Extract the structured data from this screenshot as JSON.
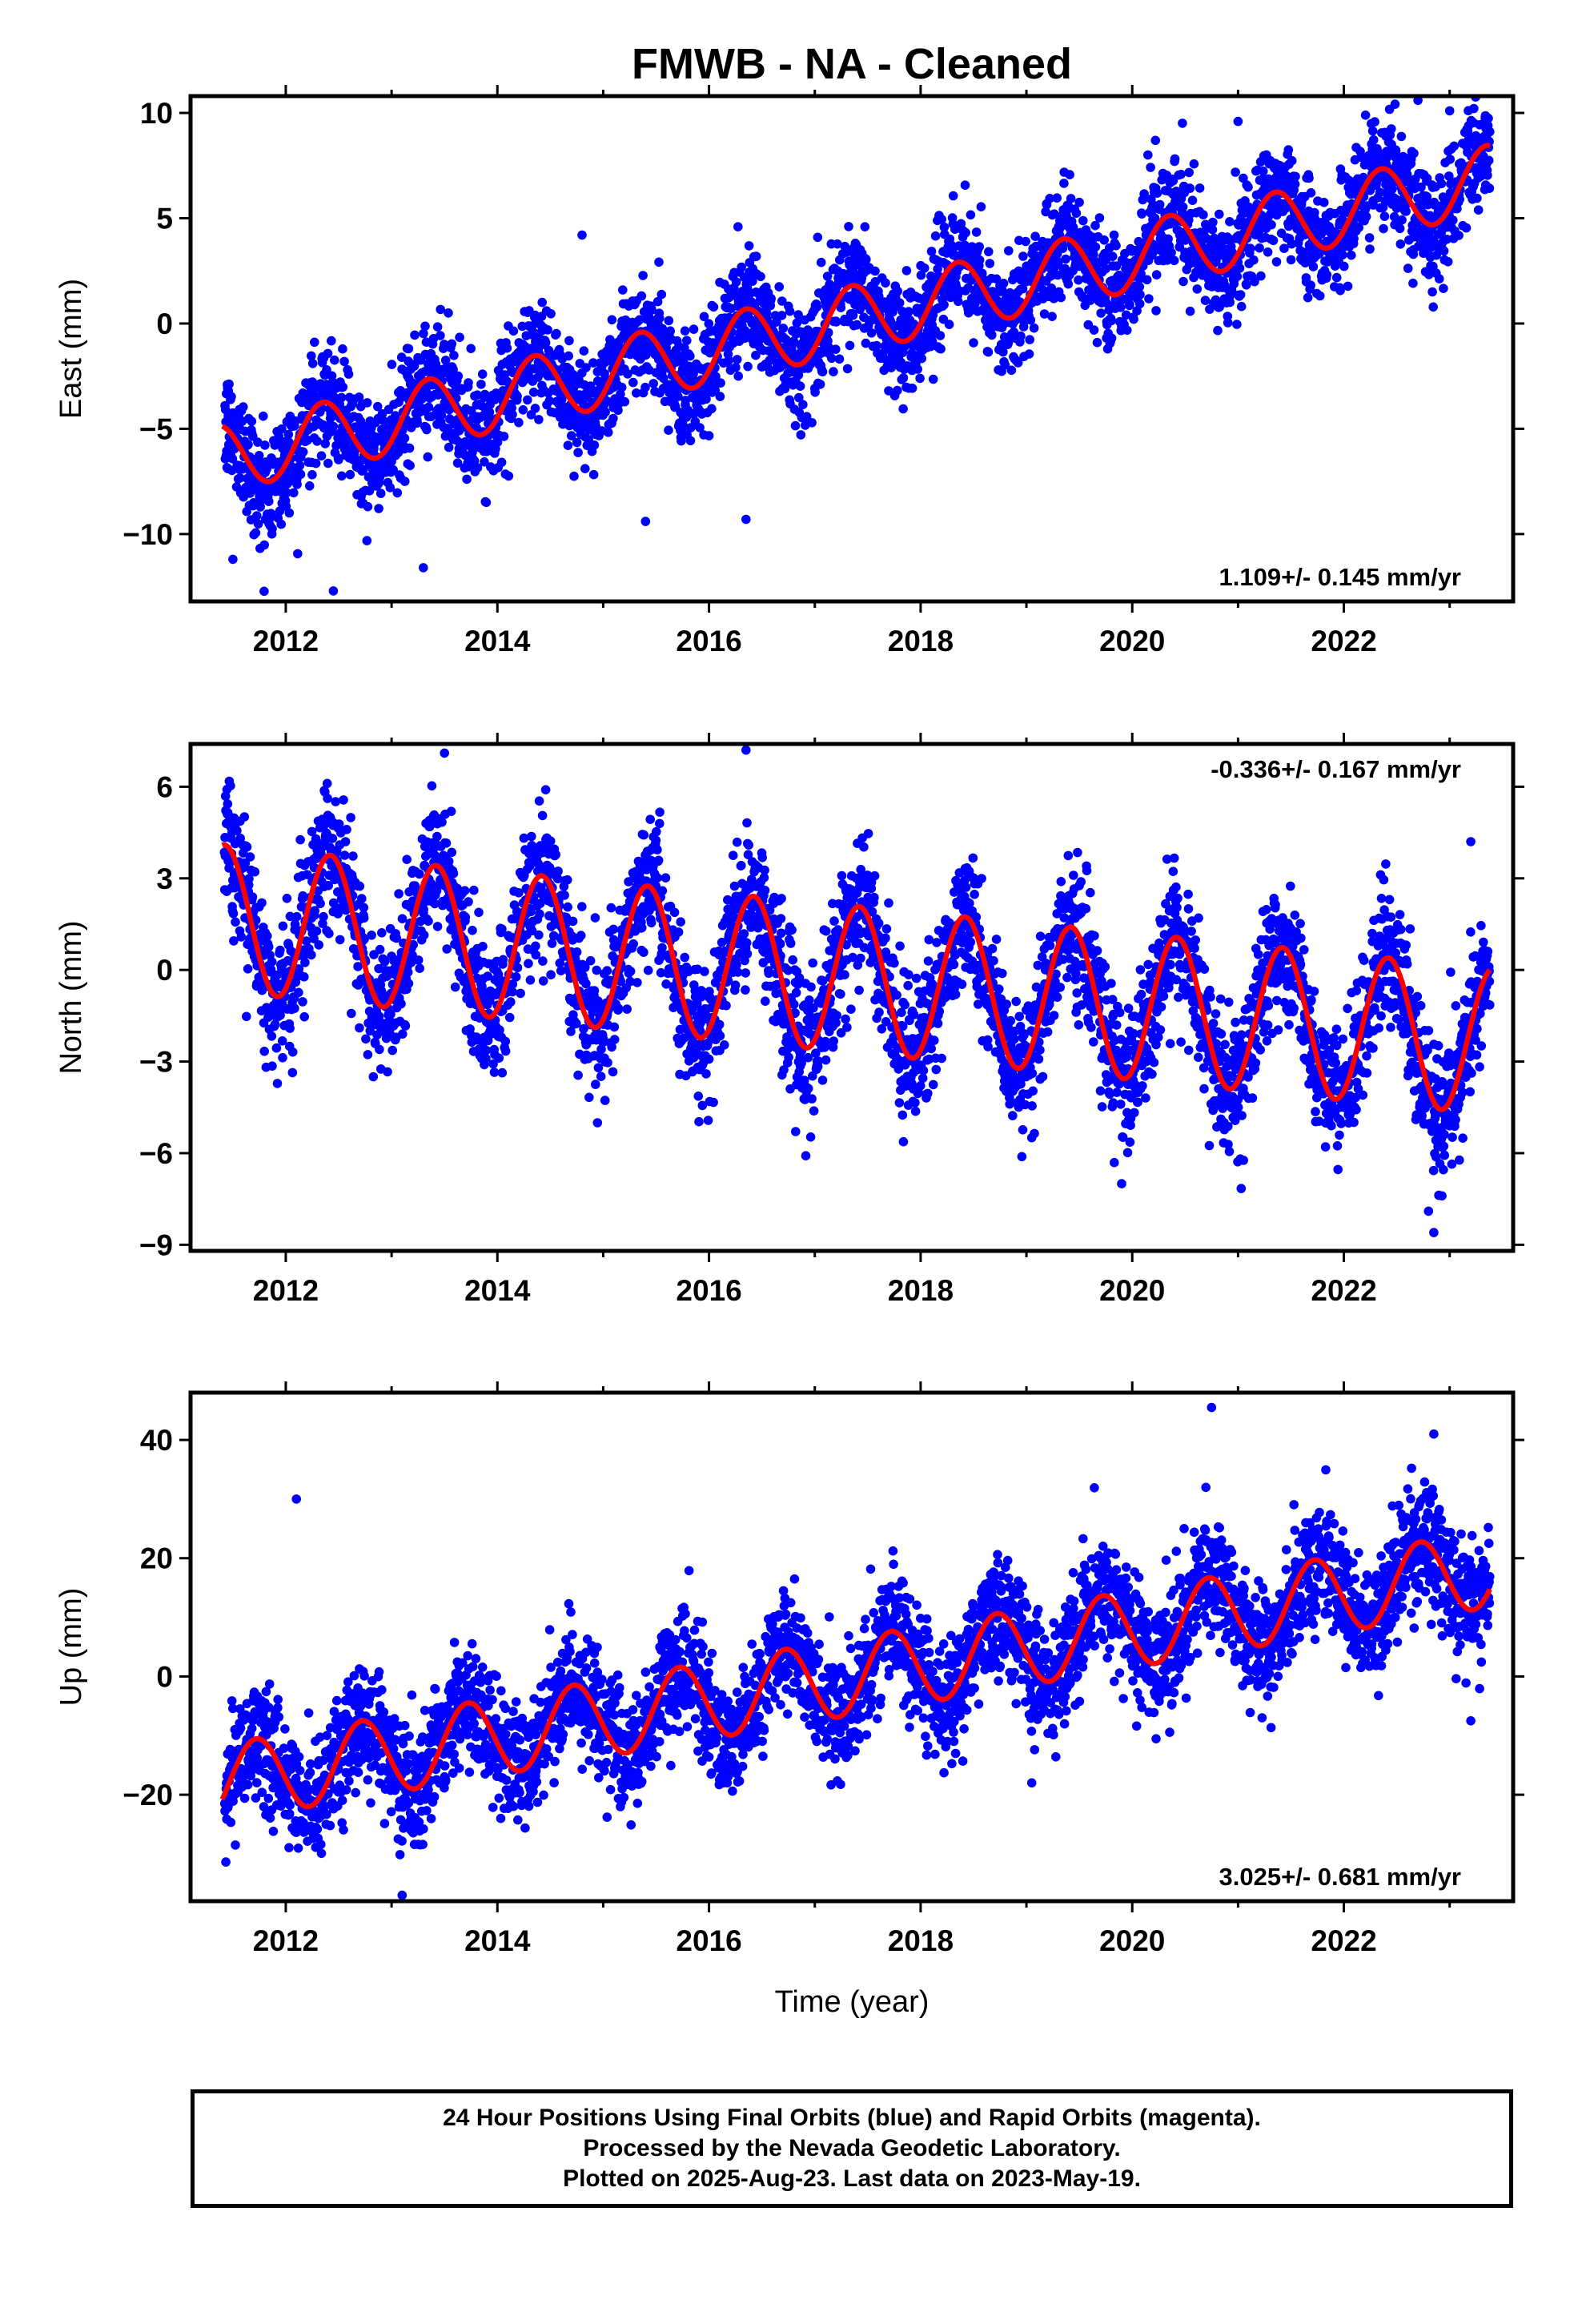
{
  "chart_data": {
    "title": "FMWB  - NA - Cleaned",
    "type": "scatter",
    "xlabel": "Time (year)",
    "xlim": [
      2011.1,
      2023.6
    ],
    "xticks": [
      2012,
      2014,
      2016,
      2018,
      2020,
      2022
    ],
    "grid": false,
    "series_colors": {
      "data": "#0000ff",
      "model": "#ff0000"
    },
    "panels": [
      {
        "id": "east",
        "ylabel": "East (mm)",
        "ylim": [
          -13.2,
          10.8
        ],
        "yticks": [
          10,
          5,
          0,
          -5,
          -10
        ],
        "ytick_labels": [
          "10",
          "5",
          "0",
          "−5",
          "−10"
        ],
        "rate_text": "1.109+/- 0.145 mm/yr",
        "rate_position": "bottom-right",
        "model": {
          "t0": 2011.4,
          "offset": -6.4,
          "trend_mm_per_yr": 1.109,
          "annual_amp": 1.6,
          "peak_year_fraction": 0.35,
          "t_end": 2023.38
        },
        "scatter_sd": 1.3,
        "outliers": [
          [
            2012.45,
            -12.7
          ],
          [
            2013.3,
            -11.6
          ],
          [
            2015.4,
            -9.4
          ],
          [
            2016.35,
            -9.3
          ],
          [
            2014.8,
            4.2
          ],
          [
            2022.7,
            10.6
          ],
          [
            2023.0,
            10.1
          ],
          [
            2021.0,
            9.6
          ],
          [
            2011.5,
            -11.2
          ]
        ]
      },
      {
        "id": "north",
        "ylabel": "North (mm)",
        "ylim": [
          -9.2,
          7.4
        ],
        "yticks": [
          6,
          3,
          0,
          -3,
          -6,
          -9
        ],
        "ytick_labels": [
          "6",
          "3",
          "0",
          "−3",
          "−6",
          "−9"
        ],
        "rate_text": "-0.336+/- 0.167 mm/yr",
        "rate_position": "top-right",
        "model": {
          "t0": 2011.4,
          "offset": 1.7,
          "trend_mm_per_yr": -0.336,
          "annual_amp": 2.4,
          "peak_year_fraction": 0.42,
          "t_end": 2023.38
        },
        "scatter_sd": 1.1,
        "outliers": [
          [
            2016.35,
            7.2
          ],
          [
            2022.85,
            -8.6
          ],
          [
            2022.8,
            -7.9
          ],
          [
            2013.5,
            7.1
          ],
          [
            2019.9,
            -7.0
          ],
          [
            2023.2,
            4.2
          ]
        ]
      },
      {
        "id": "up",
        "ylabel": "Up (mm)",
        "ylim": [
          -38,
          48
        ],
        "yticks": [
          40,
          20,
          0,
          -20
        ],
        "ytick_labels": [
          "40",
          "20",
          "0",
          "−20"
        ],
        "rate_text": "3.025+/- 0.681 mm/yr",
        "rate_position": "bottom-right",
        "model": {
          "t0": 2011.4,
          "offset": -18.0,
          "trend_mm_per_yr": 3.025,
          "annual_amp": 6.5,
          "peak_year_fraction": 0.72,
          "t_end": 2023.38
        },
        "scatter_sd": 5.0,
        "outliers": [
          [
            2020.75,
            45.5
          ],
          [
            2012.1,
            30
          ],
          [
            2022.85,
            41
          ],
          [
            2013.1,
            -37
          ],
          [
            2019.05,
            -18
          ],
          [
            2023.2,
            -7.5
          ]
        ]
      }
    ]
  },
  "footer": {
    "line1": "24 Hour Positions Using Final Orbits (blue) and Rapid Orbits (magenta).",
    "line2": "Processed by the Nevada Geodetic Laboratory.",
    "line3": "Plotted on 2025-Aug-23. Last data on 2023-May-19."
  }
}
